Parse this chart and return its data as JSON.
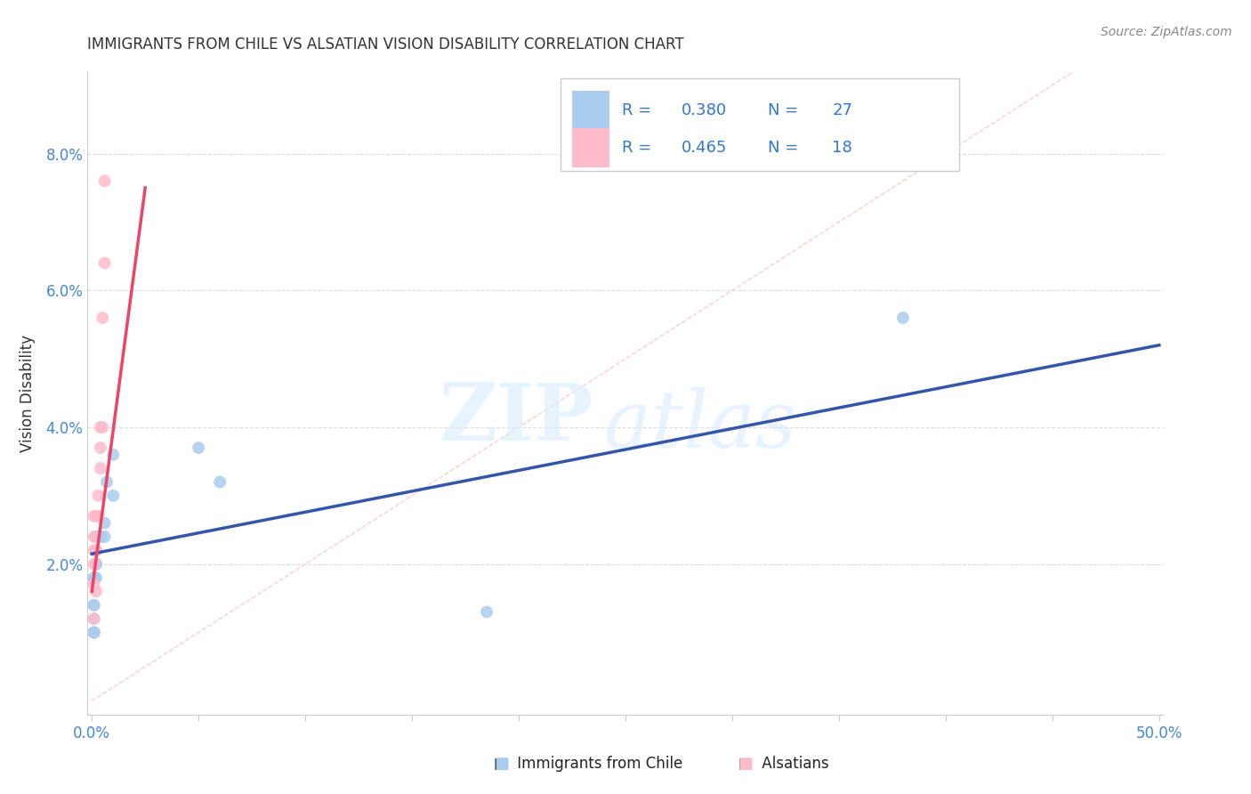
{
  "title": "IMMIGRANTS FROM CHILE VS ALSATIAN VISION DISABILITY CORRELATION CHART",
  "source": "Source: ZipAtlas.com",
  "ylabel_label": "Vision Disability",
  "xlim": [
    -0.002,
    0.502
  ],
  "ylim": [
    -0.002,
    0.092
  ],
  "xticks": [
    0.0,
    0.05,
    0.1,
    0.15,
    0.2,
    0.25,
    0.3,
    0.35,
    0.4,
    0.45,
    0.5
  ],
  "yticks": [
    0.0,
    0.02,
    0.04,
    0.06,
    0.08
  ],
  "xtick_labels_show": [
    "0.0%",
    "",
    "",
    "",
    "",
    "",
    "",
    "",
    "",
    "",
    "50.0%"
  ],
  "ytick_labels": [
    "",
    "2.0%",
    "4.0%",
    "6.0%",
    "8.0%"
  ],
  "blue_color": "#AACCEE",
  "pink_color": "#FFBBCC",
  "blue_line_color": "#3355AA",
  "pink_line_color": "#EE4466",
  "diag_line_color": "#FFCCCC",
  "r_blue": 0.38,
  "n_blue": 27,
  "r_pink": 0.465,
  "n_pink": 18,
  "legend_r_color": "#3377CC",
  "legend_n_color": "#3377CC",
  "blue_scatter_x": [
    0.01,
    0.01,
    0.007,
    0.006,
    0.006,
    0.004,
    0.004,
    0.003,
    0.003,
    0.002,
    0.002,
    0.002,
    0.002,
    0.002,
    0.001,
    0.001,
    0.001,
    0.001,
    0.001,
    0.001,
    0.001,
    0.001,
    0.001,
    0.05,
    0.06,
    0.185,
    0.38
  ],
  "blue_scatter_y": [
    0.036,
    0.03,
    0.032,
    0.026,
    0.024,
    0.024,
    0.024,
    0.024,
    0.024,
    0.024,
    0.022,
    0.02,
    0.02,
    0.018,
    0.018,
    0.018,
    0.014,
    0.014,
    0.012,
    0.01,
    0.01,
    0.01,
    0.01,
    0.037,
    0.032,
    0.013,
    0.056
  ],
  "pink_scatter_x": [
    0.006,
    0.006,
    0.005,
    0.005,
    0.004,
    0.004,
    0.004,
    0.003,
    0.003,
    0.002,
    0.002,
    0.002,
    0.001,
    0.001,
    0.001,
    0.001,
    0.001,
    0.001
  ],
  "pink_scatter_y": [
    0.076,
    0.064,
    0.056,
    0.04,
    0.04,
    0.037,
    0.034,
    0.03,
    0.027,
    0.027,
    0.022,
    0.016,
    0.027,
    0.024,
    0.022,
    0.02,
    0.017,
    0.012
  ],
  "blue_line_x": [
    0.0,
    0.5
  ],
  "blue_line_y": [
    0.0215,
    0.052
  ],
  "pink_line_x": [
    0.0,
    0.025
  ],
  "pink_line_y": [
    0.016,
    0.075
  ],
  "diag_line_x": [
    0.0,
    0.46
  ],
  "diag_line_y": [
    0.0,
    0.092
  ],
  "watermark_text": "ZIP",
  "watermark_text2": "atlas",
  "background_color": "#FFFFFF",
  "title_color": "#333333",
  "tick_label_color": "#4488CC",
  "grid_color": "#DDDDDD"
}
